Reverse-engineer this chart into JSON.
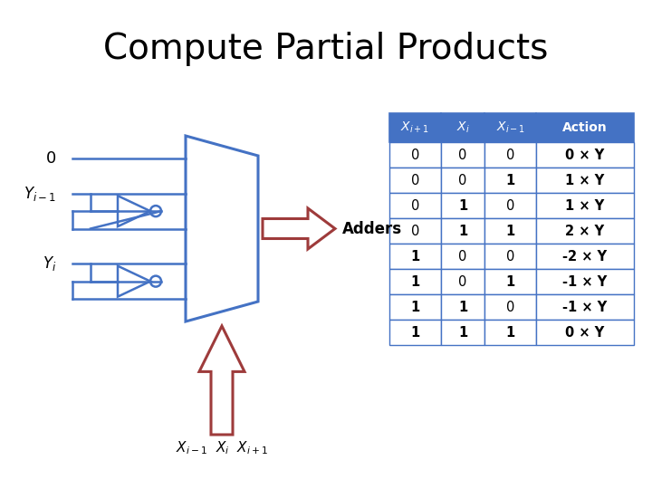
{
  "title": "Compute Partial Products",
  "title_fontsize": 28,
  "bg_color": "#ffffff",
  "diagram_color": "#4472c4",
  "arrow_color": "#9E3B3B",
  "table_header_color": "#4472c4",
  "table_border_color": "#4472c4",
  "table_rows": [
    [
      "0",
      "0",
      "0",
      "0 × Y"
    ],
    [
      "0",
      "0",
      "1",
      "1 × Y"
    ],
    [
      "0",
      "1",
      "0",
      "1 × Y"
    ],
    [
      "0",
      "1",
      "1",
      "2 × Y"
    ],
    [
      "1",
      "0",
      "0",
      "-2 × Y"
    ],
    [
      "1",
      "0",
      "1",
      "-1 × Y"
    ],
    [
      "1",
      "1",
      "0",
      "-1 × Y"
    ],
    [
      "1",
      "1",
      "1",
      "0 × Y"
    ]
  ]
}
